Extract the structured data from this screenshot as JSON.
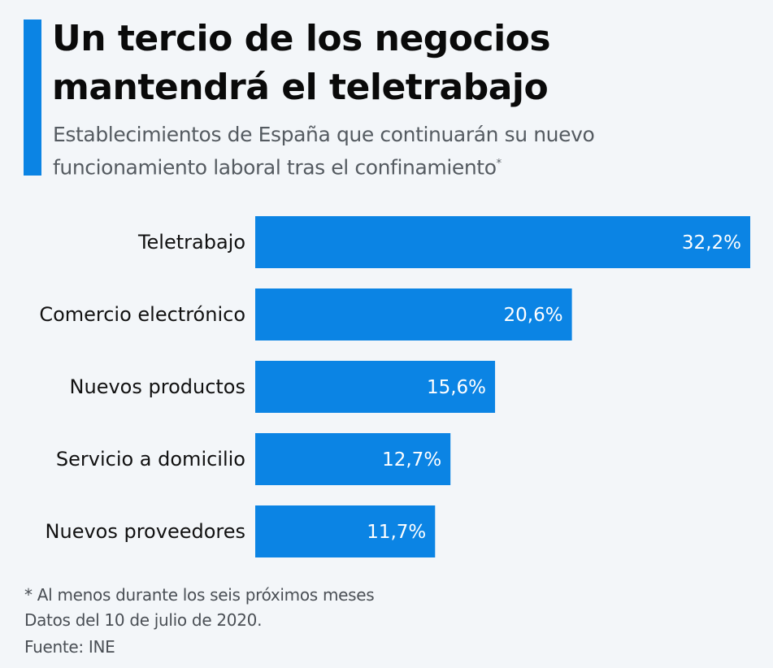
{
  "colors": {
    "bar": "#0b84e4",
    "accent": "#0b84e4",
    "background": "#f3f6f9"
  },
  "header": {
    "title_line1": "Un tercio de los negocios",
    "title_line2": "mantendrá el teletrabajo",
    "subtitle_line1": "Establecimientos de España que continuarán su nuevo",
    "subtitle_line2": "funcionamiento laboral tras el confinamiento",
    "subtitle_mark": "*"
  },
  "chart_data": {
    "type": "bar",
    "orientation": "horizontal",
    "categories": [
      "Teletrabajo",
      "Comercio electrónico",
      "Nuevos productos",
      "Servicio a domicilio",
      "Nuevos proveedores"
    ],
    "values": [
      32.2,
      20.6,
      15.6,
      12.7,
      11.7
    ],
    "data_labels": [
      "32,2%",
      "20,6%",
      "15,6%",
      "12,7%",
      "11,7%"
    ],
    "unit": "%",
    "grid": false,
    "legend": "none"
  },
  "footer": {
    "note": "* Al menos durante los seis próximos meses",
    "date": "Datos del 10 de julio de 2020.",
    "source": "Fuente: INE"
  }
}
